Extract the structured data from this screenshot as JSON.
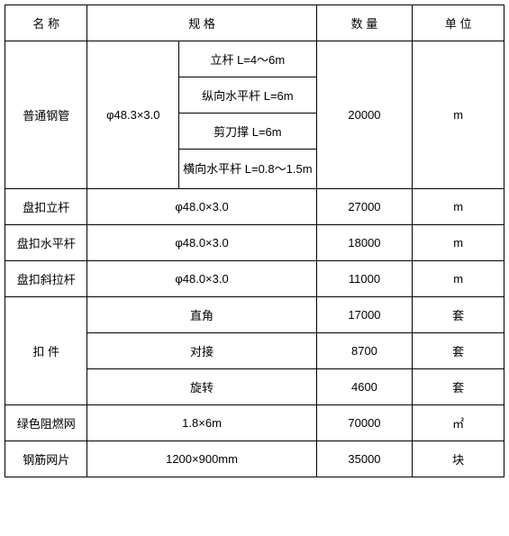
{
  "headers": {
    "name": "名 称",
    "spec": "规 格",
    "qty": "数 量",
    "unit": "单 位"
  },
  "rows": {
    "pipe": {
      "name": "普通钢管",
      "spec1": "φ48.3×3.0",
      "sub1": "立杆 L=4～6m",
      "sub2": "纵向水平杆 L=6m",
      "sub3": "剪刀撑 L=6m",
      "sub4": "横向水平杆 L=0.8～1.5m",
      "qty": "20000",
      "unit": "m"
    },
    "pankou_ligan": {
      "name": "盘扣立杆",
      "spec": "φ48.0×3.0",
      "qty": "27000",
      "unit": "m"
    },
    "pankou_shuiping": {
      "name": "盘扣水平杆",
      "spec": "φ48.0×3.0",
      "qty": "18000",
      "unit": "m"
    },
    "pankou_xiela": {
      "name": "盘扣斜拉杆",
      "spec": "φ48.0×3.0",
      "qty": "11000",
      "unit": "m"
    },
    "koujian": {
      "name": "扣 件",
      "sub1": "直角",
      "sub2": "对接",
      "sub3": "旋转",
      "qty1": "17000",
      "qty2": "8700",
      "qty3": "4600",
      "unit1": "套",
      "unit2": "套",
      "unit3": "套"
    },
    "net": {
      "name": "绿色阻燃网",
      "spec": "1.8×6m",
      "qty": "70000",
      "unit": "㎡"
    },
    "mesh": {
      "name": "钢筋网片",
      "spec": "1200×900mm",
      "qty": "35000",
      "unit": "块"
    }
  }
}
